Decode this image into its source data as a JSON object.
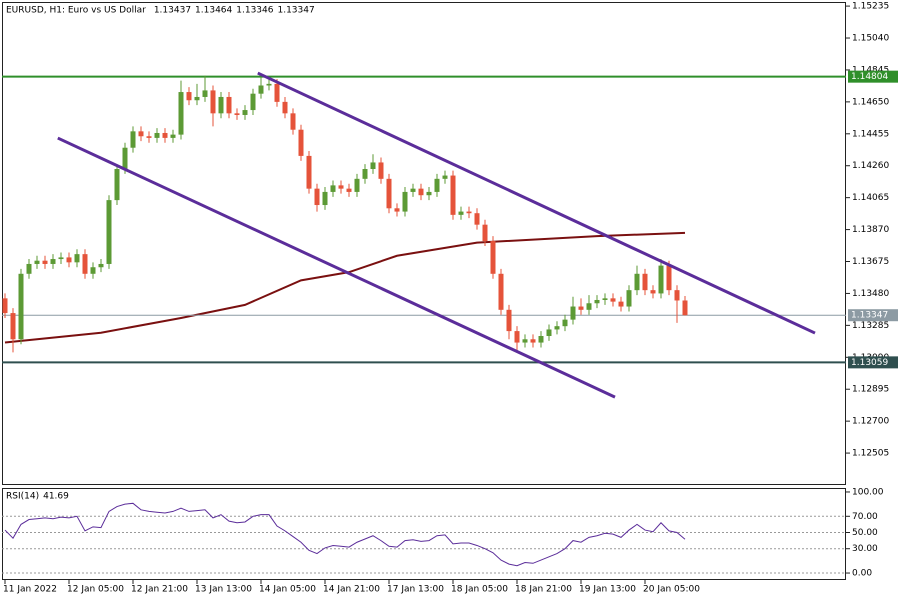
{
  "chart_data": {
    "type": "candlestick",
    "title": "EURUSD, H1:  Euro vs US Dollar",
    "up_color": "#5c9a35",
    "down_color": "#e5533a",
    "open": [
      1.1345,
      1.1336,
      1.132,
      1.136,
      1.1366,
      1.1368,
      1.1366,
      1.1369,
      1.137,
      1.1367,
      1.1372,
      1.136,
      1.1364,
      1.1366,
      1.1405,
      1.1424,
      1.1437,
      1.1447,
      1.1444,
      1.1443,
      1.1446,
      1.1443,
      1.1445,
      1.1471,
      1.1466,
      1.1468,
      1.1472,
      1.1458,
      1.1468,
      1.1458,
      1.1457,
      1.146,
      1.147,
      1.1475,
      1.1476,
      1.1465,
      1.1458,
      1.1448,
      1.1432,
      1.1412,
      1.1402,
      1.141,
      1.1414,
      1.1412,
      1.141,
      1.1418,
      1.1424,
      1.1428,
      1.1418,
      1.14,
      1.1398,
      1.141,
      1.1412,
      1.1408,
      1.141,
      1.1418,
      1.142,
      1.1396,
      1.1398,
      1.1397,
      1.139,
      1.138,
      1.136,
      1.1338,
      1.1325,
      1.1318,
      1.132,
      1.1318,
      1.1322,
      1.1326,
      1.1328,
      1.1332,
      1.134,
      1.1338,
      1.1342,
      1.1344,
      1.1345,
      1.1343,
      1.134,
      1.135,
      1.136,
      1.135,
      1.1348,
      1.1365,
      1.135,
      1.13437
    ],
    "high": [
      1.1348,
      1.1339,
      1.1363,
      1.1369,
      1.1371,
      1.1371,
      1.1372,
      1.1373,
      1.1373,
      1.1375,
      1.1375,
      1.1367,
      1.1369,
      1.1408,
      1.1427,
      1.144,
      1.145,
      1.145,
      1.1447,
      1.1449,
      1.1449,
      1.1448,
      1.1478,
      1.1474,
      1.1476,
      1.1481,
      1.1475,
      1.1471,
      1.1471,
      1.1461,
      1.1463,
      1.1473,
      1.148,
      1.1479,
      1.1479,
      1.1468,
      1.1461,
      1.1451,
      1.1435,
      1.1415,
      1.1413,
      1.1417,
      1.1417,
      1.1415,
      1.1421,
      1.1427,
      1.1433,
      1.1431,
      1.1421,
      1.1403,
      1.1413,
      1.1415,
      1.1415,
      1.1413,
      1.1421,
      1.1423,
      1.1423,
      1.1401,
      1.1401,
      1.14,
      1.1393,
      1.1383,
      1.1363,
      1.1341,
      1.1328,
      1.1323,
      1.1323,
      1.1325,
      1.1329,
      1.1331,
      1.1335,
      1.1346,
      1.1345,
      1.1347,
      1.1347,
      1.1348,
      1.1348,
      1.1346,
      1.1353,
      1.1365,
      1.1363,
      1.1353,
      1.1369,
      1.1368,
      1.1353,
      1.13464
    ],
    "low": [
      1.1333,
      1.1312,
      1.1317,
      1.1357,
      1.1363,
      1.1363,
      1.1363,
      1.1366,
      1.1364,
      1.1364,
      1.1357,
      1.1357,
      1.1361,
      1.1363,
      1.1402,
      1.1421,
      1.1434,
      1.1441,
      1.144,
      1.144,
      1.144,
      1.144,
      1.1442,
      1.1463,
      1.1463,
      1.1465,
      1.145,
      1.1455,
      1.1455,
      1.1454,
      1.1454,
      1.1457,
      1.1467,
      1.1472,
      1.1462,
      1.1455,
      1.1445,
      1.1429,
      1.1409,
      1.1398,
      1.1399,
      1.1407,
      1.1409,
      1.1407,
      1.1407,
      1.1415,
      1.1421,
      1.1415,
      1.1397,
      1.1395,
      1.1395,
      1.1407,
      1.1405,
      1.1405,
      1.1407,
      1.1415,
      1.1393,
      1.1393,
      1.1394,
      1.1387,
      1.1377,
      1.1357,
      1.1335,
      1.132,
      1.1313,
      1.1315,
      1.1315,
      1.1315,
      1.1319,
      1.1323,
      1.1325,
      1.1329,
      1.1335,
      1.1335,
      1.1339,
      1.1341,
      1.134,
      1.1337,
      1.1337,
      1.1347,
      1.1347,
      1.1345,
      1.1345,
      1.1347,
      1.133,
      1.13346
    ],
    "close": [
      1.1336,
      1.132,
      1.136,
      1.1366,
      1.1368,
      1.1366,
      1.1369,
      1.137,
      1.1367,
      1.1372,
      1.136,
      1.1364,
      1.1366,
      1.1405,
      1.1424,
      1.1437,
      1.1447,
      1.1444,
      1.1443,
      1.1446,
      1.1443,
      1.1445,
      1.1471,
      1.1466,
      1.1468,
      1.1472,
      1.1458,
      1.1468,
      1.1458,
      1.1457,
      1.146,
      1.147,
      1.1475,
      1.1476,
      1.1465,
      1.1458,
      1.1448,
      1.1432,
      1.1412,
      1.1402,
      1.141,
      1.1414,
      1.1412,
      1.141,
      1.1418,
      1.1424,
      1.1428,
      1.1418,
      1.14,
      1.1398,
      1.141,
      1.1412,
      1.1408,
      1.141,
      1.1418,
      1.142,
      1.1396,
      1.1398,
      1.1397,
      1.139,
      1.138,
      1.136,
      1.1338,
      1.1325,
      1.1318,
      1.132,
      1.1318,
      1.1322,
      1.1326,
      1.1328,
      1.1332,
      1.134,
      1.1338,
      1.1342,
      1.1344,
      1.1345,
      1.1343,
      1.134,
      1.135,
      1.136,
      1.135,
      1.1348,
      1.1365,
      1.135,
      1.13437,
      1.13347
    ],
    "xlim": [
      -0.375,
      105.125
    ],
    "xticks": [
      {
        "value": 0,
        "label": "11 Jan 2022"
      },
      {
        "value": 8,
        "label": "12 Jan 05:00"
      },
      {
        "value": 16,
        "label": "12 Jan 21:00"
      },
      {
        "value": 24,
        "label": "13 Jan 13:00"
      },
      {
        "value": 32,
        "label": "14 Jan 05:00"
      },
      {
        "value": 40,
        "label": "14 Jan 21:00"
      },
      {
        "value": 48,
        "label": "17 Jan 13:00"
      },
      {
        "value": 56,
        "label": "18 Jan 05:00"
      },
      {
        "value": 64,
        "label": "18 Jan 21:00"
      },
      {
        "value": 72,
        "label": "19 Jan 13:00"
      },
      {
        "value": 80,
        "label": "20 Jan 05:00"
      }
    ],
    "ylim": [
      1.1231,
      1.1526
    ],
    "yticks": [
      {
        "value": 1.15235,
        "label": "1.15235"
      },
      {
        "value": 1.1504,
        "label": "1.15040"
      },
      {
        "value": 1.14845,
        "label": "1.14845"
      },
      {
        "value": 1.1465,
        "label": "1.14650"
      },
      {
        "value": 1.14455,
        "label": "1.14455"
      },
      {
        "value": 1.1426,
        "label": "1.14260"
      },
      {
        "value": 1.14065,
        "label": "1.14065"
      },
      {
        "value": 1.1387,
        "label": "1.13870"
      },
      {
        "value": 1.13675,
        "label": "1.13675"
      },
      {
        "value": 1.1348,
        "label": "1.13480"
      },
      {
        "value": 1.13285,
        "label": "1.13285"
      },
      {
        "value": 1.1309,
        "label": "1.13090"
      },
      {
        "value": 1.12895,
        "label": "1.12895"
      },
      {
        "value": 1.127,
        "label": "1.12700"
      },
      {
        "value": 1.12505,
        "label": "1.12505"
      }
    ],
    "overlays": [
      {
        "type": "line",
        "color": "#7a1010",
        "x": [
          0,
          12,
          22,
          30,
          37,
          43,
          49,
          59,
          74,
          85
        ],
        "values": [
          1.1318,
          1.1324,
          1.1333,
          1.1341,
          1.1356,
          1.1361,
          1.1371,
          1.1379,
          1.1383,
          1.1385
        ]
      }
    ],
    "trendlines": [
      {
        "color": "#5b2d9a",
        "x": [
          31.6,
          101.25
        ],
        "values": [
          1.14826,
          1.13238
        ]
      },
      {
        "color": "#5b2d9a",
        "x": [
          6.6,
          76.25
        ],
        "values": [
          1.14429,
          1.12847
        ]
      }
    ],
    "hlines": [
      {
        "value": 1.14804,
        "color": "#2f8f2a"
      },
      {
        "value": 1.13347,
        "color": "#8c9aa3"
      },
      {
        "value": 1.13059,
        "color": "#2f4f4f"
      }
    ],
    "indicator": {
      "type": "line",
      "title": "RSI(14)",
      "color": "#5b2d9a",
      "ylim": [
        -8.6,
        104.9
      ],
      "yticks": [
        {
          "value": 100,
          "label": "100.00"
        },
        {
          "value": 70,
          "label": "70.00"
        },
        {
          "value": 50,
          "label": "50.00"
        },
        {
          "value": 30,
          "label": "30.00"
        },
        {
          "value": 0,
          "label": "0.00"
        }
      ],
      "values": [
        53,
        43,
        60,
        66,
        67,
        68,
        67,
        69,
        68,
        70,
        52,
        57,
        56,
        76,
        82,
        85,
        86,
        78,
        76,
        75,
        74,
        76,
        80,
        76,
        77,
        78,
        68,
        72,
        64,
        62,
        63,
        70,
        72,
        72,
        58,
        52,
        45,
        38,
        28,
        24,
        31,
        34,
        33,
        32,
        38,
        42,
        46,
        40,
        33,
        32,
        40,
        41,
        39,
        40,
        46,
        47,
        36,
        37,
        37,
        34,
        30,
        25,
        16,
        11,
        9,
        13,
        12,
        16,
        20,
        24,
        30,
        40,
        38,
        44,
        46,
        49,
        48,
        44,
        53,
        60,
        53,
        51,
        62,
        52,
        50,
        41.69
      ]
    }
  }
}
